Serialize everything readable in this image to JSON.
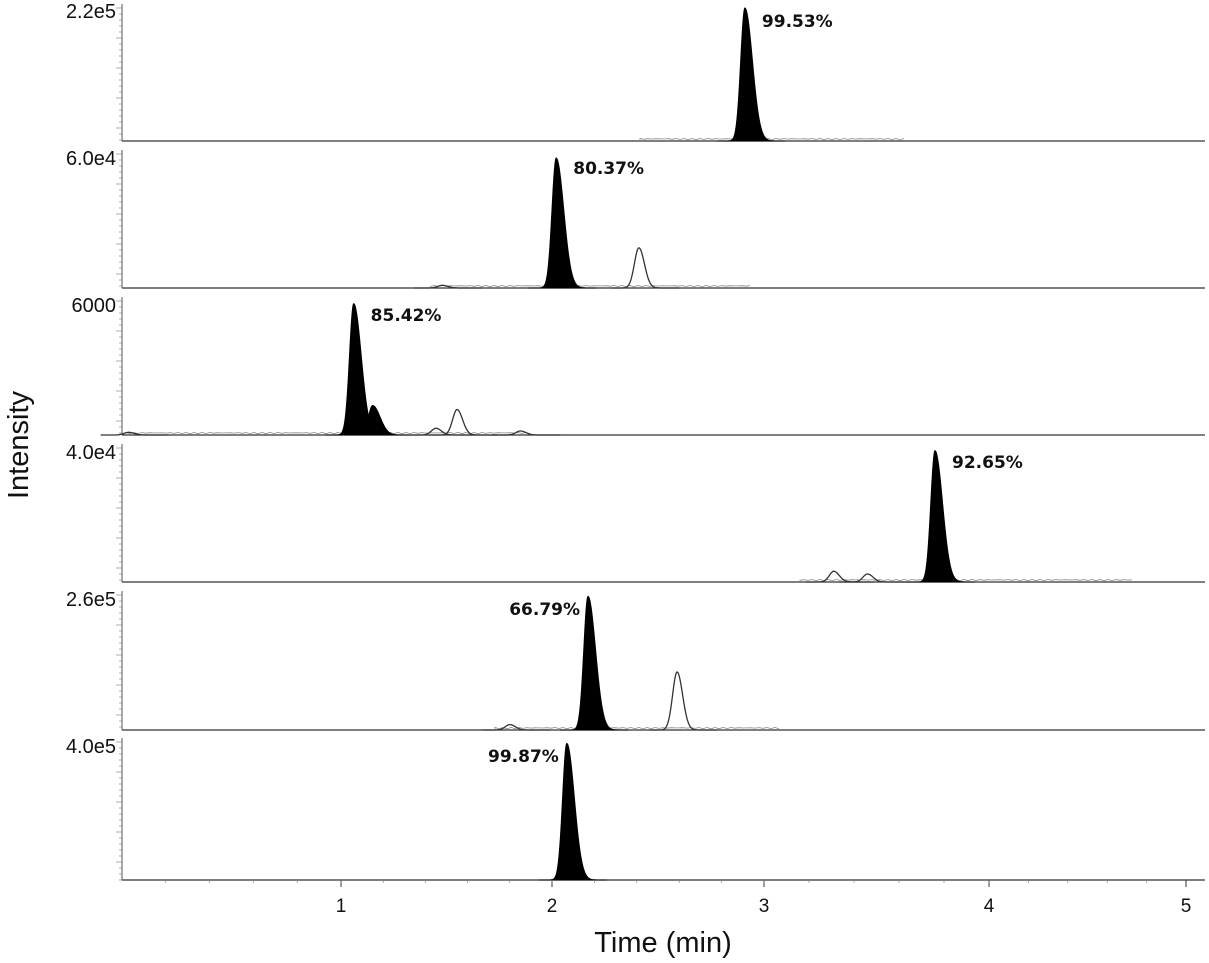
{
  "chart_data": {
    "type": "line",
    "xlabel": "Time (min)",
    "ylabel": "Intensity",
    "xlim": [
      0,
      5
    ],
    "x_ticks": [
      1,
      2,
      3,
      4,
      5
    ],
    "legend": "none",
    "grid": false,
    "panels": [
      {
        "y_top_label": "2.2e5",
        "ymax": 220000,
        "annotation": "99.53%",
        "annotation_side": "right",
        "peaks": [
          {
            "rt": 2.91,
            "height": 1.0,
            "filled": true
          }
        ]
      },
      {
        "y_top_label": "6.0e4",
        "ymax": 60000,
        "annotation": "80.37%",
        "annotation_side": "right",
        "peaks": [
          {
            "rt": 2.02,
            "height": 0.97,
            "filled": true
          },
          {
            "rt": 2.41,
            "height": 0.3,
            "filled": false
          },
          {
            "rt": 1.48,
            "height": 0.02,
            "filled": false
          }
        ]
      },
      {
        "y_top_label": "6000",
        "ymax": 6000,
        "annotation": "85.42%",
        "annotation_side": "right",
        "peaks": [
          {
            "rt": 1.06,
            "height": 0.98,
            "filled": true
          },
          {
            "rt": 1.15,
            "height": 0.22,
            "filled": true
          },
          {
            "rt": 1.55,
            "height": 0.19,
            "filled": false
          },
          {
            "rt": 1.45,
            "height": 0.05,
            "filled": false
          },
          {
            "rt": 1.85,
            "height": 0.03,
            "filled": false
          },
          {
            "rt": 0.03,
            "height": 0.02,
            "filled": false
          }
        ]
      },
      {
        "y_top_label": "4.0e4",
        "ymax": 40000,
        "annotation": "92.65%",
        "annotation_side": "right",
        "peaks": [
          {
            "rt": 3.76,
            "height": 0.98,
            "filled": true
          },
          {
            "rt": 3.31,
            "height": 0.08,
            "filled": false
          },
          {
            "rt": 3.46,
            "height": 0.06,
            "filled": false
          }
        ]
      },
      {
        "y_top_label": "2.6e5",
        "ymax": 260000,
        "annotation": "66.79%",
        "annotation_side": "left",
        "peaks": [
          {
            "rt": 2.17,
            "height": 0.99,
            "filled": true
          },
          {
            "rt": 2.59,
            "height": 0.43,
            "filled": false
          },
          {
            "rt": 1.8,
            "height": 0.04,
            "filled": false
          }
        ]
      },
      {
        "y_top_label": "4.0e5",
        "ymax": 400000,
        "annotation": "99.87%",
        "annotation_side": "left",
        "peaks": [
          {
            "rt": 2.07,
            "height": 0.99,
            "filled": true
          }
        ]
      }
    ]
  }
}
